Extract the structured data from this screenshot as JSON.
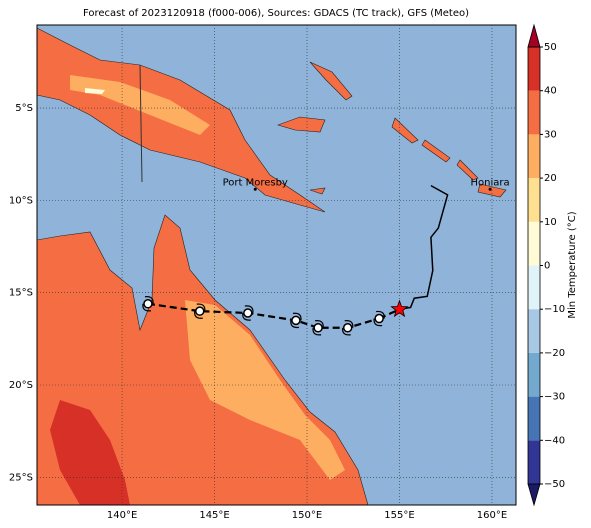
{
  "chart_data": {
    "type": "map",
    "title": "Forecast of 2023120918 (f000-006), Sources: GDACS (TC track), GFS (Meteo)",
    "xlim": [
      135.4,
      161.3
    ],
    "ylim": [
      -26.5,
      -0.5
    ],
    "xticks": [
      {
        "value": 140,
        "label": "140°E"
      },
      {
        "value": 145,
        "label": "145°E"
      },
      {
        "value": 150,
        "label": "150°E"
      },
      {
        "value": 155,
        "label": "155°E"
      },
      {
        "value": 160,
        "label": "160°E"
      }
    ],
    "yticks": [
      {
        "value": -5,
        "label": "5°S"
      },
      {
        "value": -10,
        "label": "10°S"
      },
      {
        "value": -15,
        "label": "15°S"
      },
      {
        "value": -20,
        "label": "20°S"
      },
      {
        "value": -25,
        "label": "25°S"
      }
    ],
    "grid": true,
    "places": [
      {
        "name": "Port Moresby",
        "lon": 147.2,
        "lat": -9.4
      },
      {
        "name": "Honiara",
        "lon": 159.9,
        "lat": -9.4
      }
    ],
    "forecast_track": {
      "lon": [
        141.4,
        144.2,
        146.8,
        149.4,
        150.6,
        152.2,
        153.9
      ],
      "lat": [
        -15.6,
        -16.0,
        -16.1,
        -16.5,
        -16.9,
        -16.9,
        -16.4
      ]
    },
    "current_position": {
      "lon": 155.0,
      "lat": -15.9,
      "color": "#ff0000"
    },
    "observed_track": {
      "lon": [
        155.0,
        155.6,
        155.8,
        156.5,
        156.8,
        156.7,
        157.1,
        157.6,
        156.7
      ],
      "lat": [
        -15.9,
        -15.8,
        -15.3,
        -15.2,
        -13.8,
        -12.0,
        -11.5,
        -9.7,
        -9.2
      ]
    },
    "colorbar": {
      "label": "Min Temperature (°C)",
      "bounds": [
        -50,
        -40,
        -30,
        -20,
        -10,
        0,
        10,
        20,
        30,
        40,
        50
      ],
      "colors": [
        "#313695",
        "#4575b4",
        "#74a9cf",
        "#a6c8e4",
        "#e0f3f8",
        "#fffbd6",
        "#fee090",
        "#fdae61",
        "#f46d43",
        "#d73027"
      ],
      "under_color": "#1a1a66",
      "over_color": "#a50026",
      "ticks": [
        {
          "value": -50,
          "label": "−50"
        },
        {
          "value": -40,
          "label": "−40"
        },
        {
          "value": -30,
          "label": "−30"
        },
        {
          "value": -20,
          "label": "−20"
        },
        {
          "value": -10,
          "label": "−10"
        },
        0,
        10,
        20,
        30,
        40,
        50
      ]
    }
  }
}
